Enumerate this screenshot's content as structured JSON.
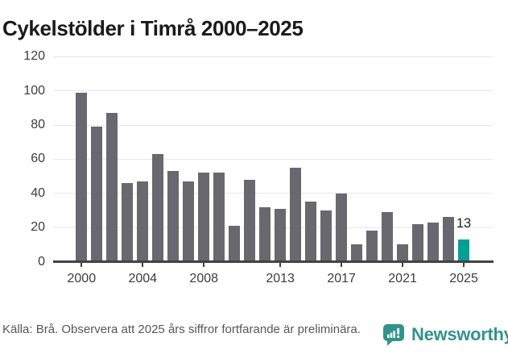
{
  "title": "Cykelstölder i Timrå 2000–2025",
  "chart_data": {
    "type": "bar",
    "title": "Cykelstölder i Timrå 2000–2025",
    "categories": [
      2000,
      2001,
      2002,
      2003,
      2004,
      2005,
      2006,
      2007,
      2008,
      2009,
      2010,
      2011,
      2012,
      2013,
      2014,
      2015,
      2016,
      2017,
      2018,
      2019,
      2020,
      2021,
      2022,
      2023,
      2024,
      2025
    ],
    "values": [
      99,
      79,
      87,
      46,
      47,
      63,
      53,
      47,
      52,
      52,
      21,
      48,
      32,
      31,
      55,
      35,
      30,
      40,
      10,
      18,
      29,
      10,
      22,
      23,
      26,
      13
    ],
    "highlight_year": 2025,
    "value_label": {
      "year": 2025,
      "text": "13"
    },
    "y_ticks": [
      0,
      20,
      40,
      60,
      80,
      100,
      120
    ],
    "ylim": [
      0,
      120
    ],
    "x_tick_labels": [
      2000,
      2004,
      2008,
      2013,
      2017,
      2021,
      2025
    ],
    "grid": "horizontal",
    "legend": "none",
    "colors": {
      "bar": "#69686e",
      "highlight": "#00a096",
      "gridline": "#e7e7e7",
      "axis": "#424242",
      "tick_text": "#3d3d3d",
      "value_label": "#1f1f1f"
    }
  },
  "footer": {
    "source_note": "Källa: Brå. Observera att 2025 års siffror fortfarande är preliminära."
  },
  "branding": {
    "name": "Newsworthy",
    "color": "#2f948c",
    "icon": "newsworthy-speech-bubble-barchart-icon"
  }
}
